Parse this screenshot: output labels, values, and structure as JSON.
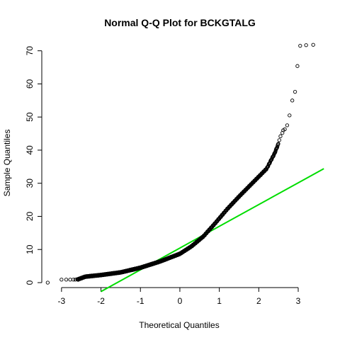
{
  "chart_data": {
    "type": "scatter",
    "title": "Normal Q-Q Plot for BCKGTALG",
    "xlabel": "Theoretical Quantiles",
    "ylabel": "Sample Quantiles",
    "xlim": [
      -3.5,
      3.7
    ],
    "ylim": [
      -1.5,
      72.5
    ],
    "x_ticks": [
      -3,
      -2,
      -1,
      0,
      1,
      2,
      3
    ],
    "y_ticks": [
      0,
      10,
      20,
      30,
      40,
      50,
      60,
      70
    ],
    "point_color": "#000000",
    "line_color": "#00dd00",
    "reference_line": {
      "x": [
        -2.0,
        3.65
      ],
      "y": [
        -2.7,
        34.4
      ]
    },
    "curve_knots": [
      [
        -2.6,
        0.9
      ],
      [
        -2.4,
        1.8
      ],
      [
        -2.0,
        2.3
      ],
      [
        -1.5,
        3.1
      ],
      [
        -1.0,
        4.5
      ],
      [
        -0.5,
        6.4
      ],
      [
        0.0,
        8.7
      ],
      [
        0.3,
        11.0
      ],
      [
        0.6,
        14.0
      ],
      [
        0.9,
        18.0
      ],
      [
        1.2,
        22.2
      ],
      [
        1.5,
        26.0
      ],
      [
        1.8,
        29.6
      ],
      [
        2.0,
        32.0
      ],
      [
        2.2,
        34.4
      ],
      [
        2.4,
        39.0
      ],
      [
        2.5,
        42.0
      ]
    ],
    "points": [
      [
        -3.35,
        0.0
      ],
      [
        -3.0,
        0.9
      ],
      [
        -2.88,
        0.9
      ],
      [
        -2.78,
        0.9
      ],
      [
        -2.7,
        0.9
      ],
      [
        -2.65,
        0.9
      ],
      [
        2.52,
        43.0
      ],
      [
        2.55,
        44.2
      ],
      [
        2.6,
        45.2
      ],
      [
        2.62,
        46.0
      ],
      [
        2.66,
        46.3
      ],
      [
        2.72,
        47.5
      ],
      [
        2.78,
        50.5
      ],
      [
        2.85,
        55.0
      ],
      [
        2.92,
        57.6
      ],
      [
        2.98,
        65.4
      ],
      [
        3.05,
        71.5
      ],
      [
        3.2,
        71.7
      ],
      [
        3.38,
        71.8
      ]
    ]
  }
}
